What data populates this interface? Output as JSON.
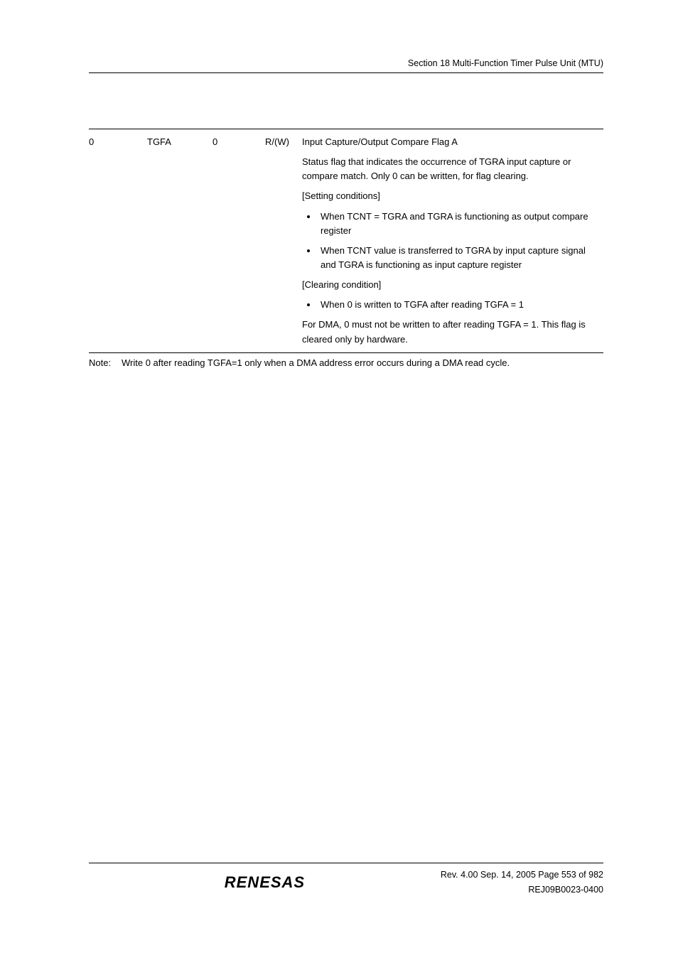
{
  "header": {
    "section_text": "Section 18   Multi-Function Timer Pulse Unit (MTU)"
  },
  "register": {
    "bit": "0",
    "bit_name": "TGFA",
    "initial_value": "0",
    "rw": "R/(W)",
    "title": "Input Capture/Output Compare Flag A",
    "status_desc": "Status flag that indicates the occurrence of TGRA input capture or compare match. Only 0 can be written, for flag clearing.",
    "setting_label": "[Setting conditions]",
    "setting_items": [
      "When TCNT = TGRA and TGRA is functioning as output compare register",
      "When TCNT value is transferred to TGRA by input capture signal and TGRA is functioning as input capture register"
    ],
    "clearing_label": "[Clearing condition]",
    "clearing_items": [
      "When 0 is written to TGFA after reading TGFA = 1"
    ],
    "dma_note": "For DMA, 0 must not be written to after reading TGFA = 1. This flag is cleared only by hardware."
  },
  "note": {
    "label": "Note:",
    "text": "Write 0 after reading TGFA=1 only when a DMA address error occurs during a DMA read cycle."
  },
  "footer": {
    "logo": "RENESAS",
    "rev_line": "Rev. 4.00  Sep. 14, 2005  Page 553 of 982",
    "doc_id": "REJ09B0023-0400"
  }
}
